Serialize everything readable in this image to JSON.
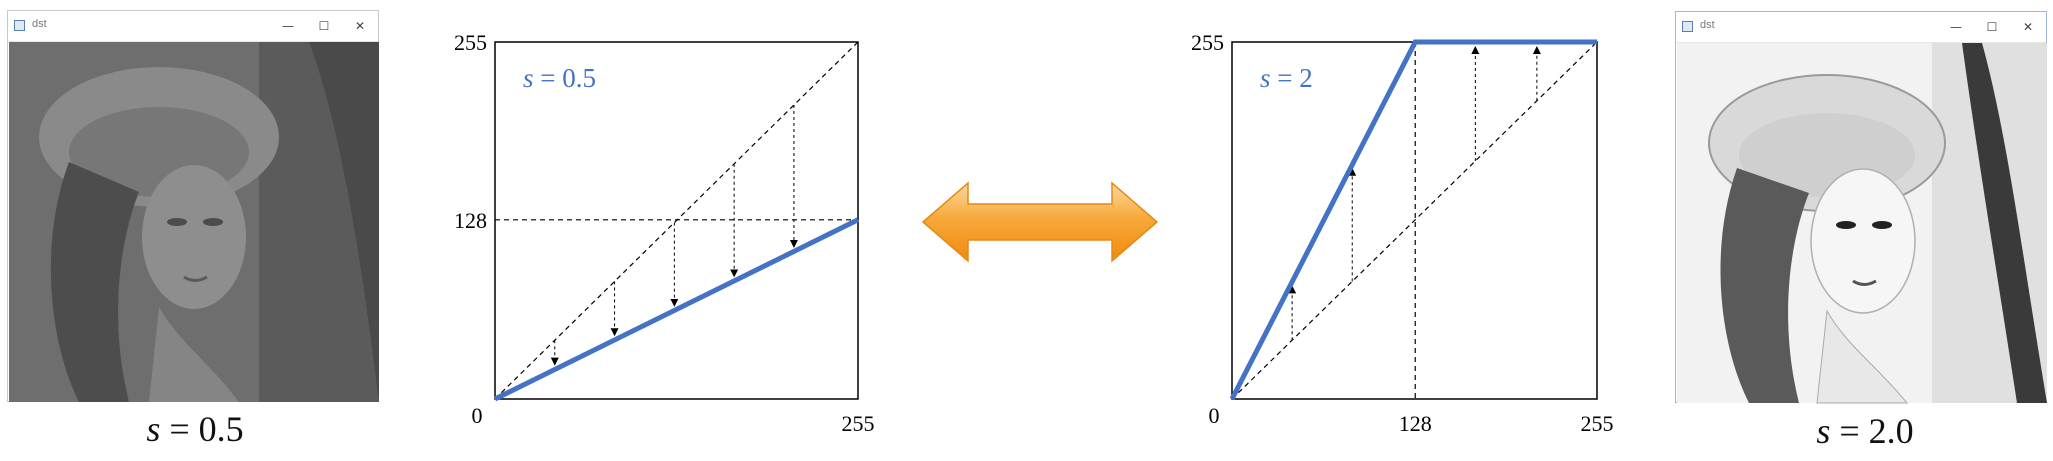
{
  "left_window": {
    "title": "dst",
    "controls": [
      "—",
      "☐",
      "✕"
    ]
  },
  "right_window": {
    "title": "dst",
    "controls": [
      "—",
      "☐",
      "✕"
    ]
  },
  "left_caption": {
    "var": "s",
    "rest": " = 0.5"
  },
  "right_caption": {
    "var": "s",
    "rest": " = 2.0"
  },
  "colors": {
    "curve": "#4472c4",
    "arrow_orange": "#f39a1e",
    "arrow_light": "#fcd9a0"
  },
  "icons": {
    "double_arrow": "double-headed-arrow-icon"
  },
  "chart_data": [
    {
      "type": "line",
      "annotation_var": "s",
      "annotation_rest": " = 0.5",
      "xlim": [
        0,
        255
      ],
      "ylim": [
        0,
        255
      ],
      "origin_label": "0",
      "x_tick_labels": [
        "255"
      ],
      "y_tick_labels": [
        "255",
        "128"
      ],
      "series": [
        {
          "x": [
            0,
            255
          ],
          "y": [
            0,
            128
          ]
        }
      ],
      "identity_line": {
        "x": [
          0,
          255
        ],
        "y": [
          0,
          255
        ]
      },
      "guide_line_y": 128,
      "arrows": [
        {
          "x": 42,
          "from": 42,
          "to": 21
        },
        {
          "x": 84,
          "from": 84,
          "to": 42
        },
        {
          "x": 126,
          "from": 126,
          "to": 63
        },
        {
          "x": 168,
          "from": 168,
          "to": 84
        },
        {
          "x": 210,
          "from": 210,
          "to": 105
        }
      ]
    },
    {
      "type": "line",
      "annotation_var": "s",
      "annotation_rest": " = 2",
      "xlim": [
        0,
        255
      ],
      "ylim": [
        0,
        255
      ],
      "origin_label": "0",
      "x_tick_labels": [
        "128",
        "255"
      ],
      "y_tick_labels": [
        "255"
      ],
      "series": [
        {
          "x": [
            0,
            128,
            255
          ],
          "y": [
            0,
            255,
            255
          ]
        }
      ],
      "identity_line": {
        "x": [
          0,
          255
        ],
        "y": [
          0,
          255
        ]
      },
      "guide_line_x": 128,
      "arrows": [
        {
          "x": 42,
          "from": 42,
          "to": 84
        },
        {
          "x": 84,
          "from": 84,
          "to": 168
        },
        {
          "x": 170,
          "from": 170,
          "to": 255
        },
        {
          "x": 213,
          "from": 213,
          "to": 255
        }
      ]
    }
  ]
}
